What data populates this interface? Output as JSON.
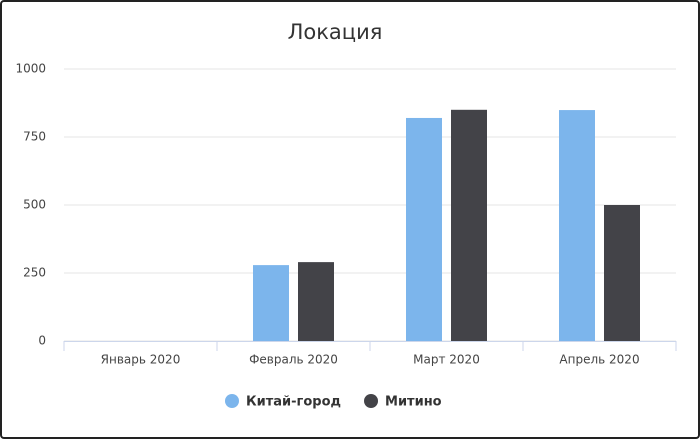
{
  "chart_data": {
    "type": "bar",
    "title": "Локация",
    "categories": [
      "Январь 2020",
      "Февраль 2020",
      "Март 2020",
      "Апрель 2020"
    ],
    "series": [
      {
        "name": "Китай-город",
        "color": "#7cb5ec",
        "values": [
          0,
          279,
          820,
          849
        ]
      },
      {
        "name": "Митино",
        "color": "#434348",
        "values": [
          0,
          290,
          850,
          500
        ]
      }
    ],
    "ylim": [
      0,
      1000
    ],
    "yticks": [
      0,
      250,
      500,
      750,
      1000
    ],
    "grid": true,
    "legend": "bottom"
  }
}
